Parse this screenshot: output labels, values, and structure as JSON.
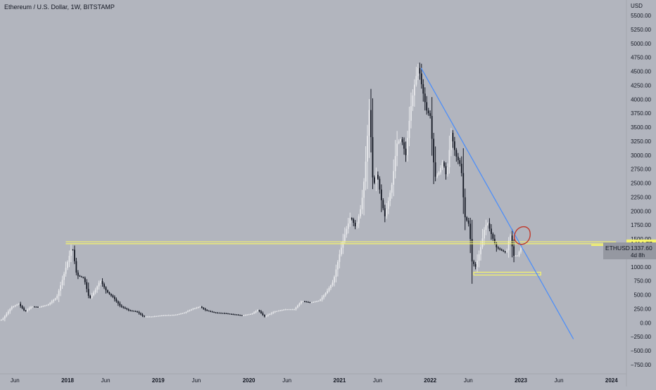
{
  "header": {
    "symbol_title": "Ethereum / U.S. Dollar, 1W, BITSTAMP"
  },
  "price_axis": {
    "currency_label": "USD",
    "ticks": [
      "5500.00",
      "5250.00",
      "5000.00",
      "4750.00",
      "4500.00",
      "4250.00",
      "4000.00",
      "3750.00",
      "3500.00",
      "3250.00",
      "3000.00",
      "2750.00",
      "2500.00",
      "2250.00",
      "2000.00",
      "1750.00",
      "1500.00",
      "1250.00",
      "1000.00",
      "750.00",
      "500.00",
      "250.00",
      "0.00",
      "−250.00",
      "−500.00",
      "−750.00"
    ],
    "tick_values": [
      5500,
      5250,
      5000,
      4750,
      4500,
      4250,
      4000,
      3750,
      3500,
      3250,
      3000,
      2750,
      2500,
      2250,
      2000,
      1750,
      1500,
      1250,
      1000,
      750,
      500,
      250,
      0,
      -250,
      -500,
      -750
    ]
  },
  "time_axis": {
    "labels": [
      "Jun",
      "2018",
      "Jun",
      "2019",
      "Jun",
      "2020",
      "Jun",
      "2021",
      "Jun",
      "2022",
      "Jun",
      "2023",
      "Jun",
      "2024"
    ],
    "label_times": [
      2017.42,
      2018.0,
      2018.42,
      2019.0,
      2019.42,
      2020.0,
      2020.42,
      2021.0,
      2021.42,
      2022.0,
      2022.42,
      2023.0,
      2023.42,
      2024.0
    ]
  },
  "price_badges": {
    "level": {
      "value": "1414.77",
      "color": "#f7f56b"
    },
    "last": {
      "symbol": "ETHUSD",
      "value": "1337.60",
      "countdown": "4d 8h",
      "color": "#9598a1"
    }
  },
  "colors": {
    "background": "#b2b5be",
    "up_candle": "#e8e9ec",
    "down_candle": "#131722",
    "trendline": "#4f8ff7",
    "zone": "#f7f56b",
    "marker": "#c0392b"
  },
  "chart_data": {
    "type": "candlestick",
    "title": "Ethereum / U.S. Dollar, 1W, BITSTAMP",
    "x_unit": "year",
    "y_unit": "USD",
    "xlim": [
      2017.0,
      2024.4
    ],
    "ylim": [
      -850,
      5750
    ],
    "price_path": [
      [
        2017.0,
        8
      ],
      [
        2017.2,
        15
      ],
      [
        2017.3,
        60
      ],
      [
        2017.4,
        280
      ],
      [
        2017.48,
        340
      ],
      [
        2017.55,
        200
      ],
      [
        2017.62,
        290
      ],
      [
        2017.7,
        280
      ],
      [
        2017.8,
        320
      ],
      [
        2017.9,
        460
      ],
      [
        2017.96,
        760
      ],
      [
        2018.03,
        1150
      ],
      [
        2018.07,
        1380
      ],
      [
        2018.12,
        850
      ],
      [
        2018.2,
        800
      ],
      [
        2018.26,
        420
      ],
      [
        2018.33,
        600
      ],
      [
        2018.38,
        760
      ],
      [
        2018.45,
        560
      ],
      [
        2018.52,
        460
      ],
      [
        2018.6,
        300
      ],
      [
        2018.7,
        220
      ],
      [
        2018.78,
        200
      ],
      [
        2018.86,
        110
      ],
      [
        2018.95,
        110
      ],
      [
        2019.05,
        130
      ],
      [
        2019.2,
        140
      ],
      [
        2019.3,
        175
      ],
      [
        2019.4,
        250
      ],
      [
        2019.48,
        290
      ],
      [
        2019.55,
        220
      ],
      [
        2019.65,
        180
      ],
      [
        2019.75,
        170
      ],
      [
        2019.85,
        150
      ],
      [
        2019.95,
        130
      ],
      [
        2020.05,
        160
      ],
      [
        2020.12,
        230
      ],
      [
        2020.19,
        110
      ],
      [
        2020.3,
        200
      ],
      [
        2020.42,
        240
      ],
      [
        2020.52,
        240
      ],
      [
        2020.6,
        390
      ],
      [
        2020.7,
        360
      ],
      [
        2020.8,
        400
      ],
      [
        2020.88,
        560
      ],
      [
        2020.95,
        740
      ],
      [
        2021.02,
        1230
      ],
      [
        2021.08,
        1600
      ],
      [
        2021.14,
        1900
      ],
      [
        2021.2,
        1700
      ],
      [
        2021.26,
        2100
      ],
      [
        2021.3,
        2700
      ],
      [
        2021.35,
        3900
      ],
      [
        2021.39,
        2400
      ],
      [
        2021.43,
        2700
      ],
      [
        2021.48,
        2200
      ],
      [
        2021.52,
        1900
      ],
      [
        2021.56,
        2200
      ],
      [
        2021.6,
        2500
      ],
      [
        2021.65,
        3200
      ],
      [
        2021.7,
        3300
      ],
      [
        2021.75,
        3000
      ],
      [
        2021.8,
        3800
      ],
      [
        2021.85,
        4300
      ],
      [
        2021.89,
        4600
      ],
      [
        2021.93,
        4200
      ],
      [
        2021.98,
        3800
      ],
      [
        2022.02,
        3700
      ],
      [
        2022.07,
        2600
      ],
      [
        2022.12,
        2700
      ],
      [
        2022.16,
        2900
      ],
      [
        2022.2,
        2600
      ],
      [
        2022.25,
        3400
      ],
      [
        2022.3,
        3000
      ],
      [
        2022.36,
        2800
      ],
      [
        2022.4,
        1900
      ],
      [
        2022.45,
        1750
      ],
      [
        2022.48,
        1100
      ],
      [
        2022.52,
        1000
      ],
      [
        2022.57,
        1300
      ],
      [
        2022.62,
        1700
      ],
      [
        2022.65,
        1800
      ],
      [
        2022.7,
        1550
      ],
      [
        2022.75,
        1350
      ],
      [
        2022.8,
        1300
      ],
      [
        2022.86,
        1250
      ],
      [
        2022.9,
        1600
      ],
      [
        2022.94,
        1200
      ],
      [
        2022.98,
        1200
      ],
      [
        2023.02,
        1337.6
      ]
    ],
    "annotations": {
      "horizontal_levels": [
        {
          "value": 1414.77,
          "from": 2017.98,
          "to": 2024.05
        },
        {
          "value": 1450,
          "from": 2017.98,
          "to": 2024.05
        }
      ],
      "support_zone": {
        "from": 2022.48,
        "to": 2023.22,
        "low": 855,
        "high": 905
      },
      "trendline": [
        [
          2021.9,
          4560
        ],
        [
          2023.58,
          -290
        ]
      ],
      "marker": {
        "x": 2023.01,
        "y": 1560
      }
    },
    "last_price": 1337.6,
    "grid": false,
    "legend": "none"
  }
}
